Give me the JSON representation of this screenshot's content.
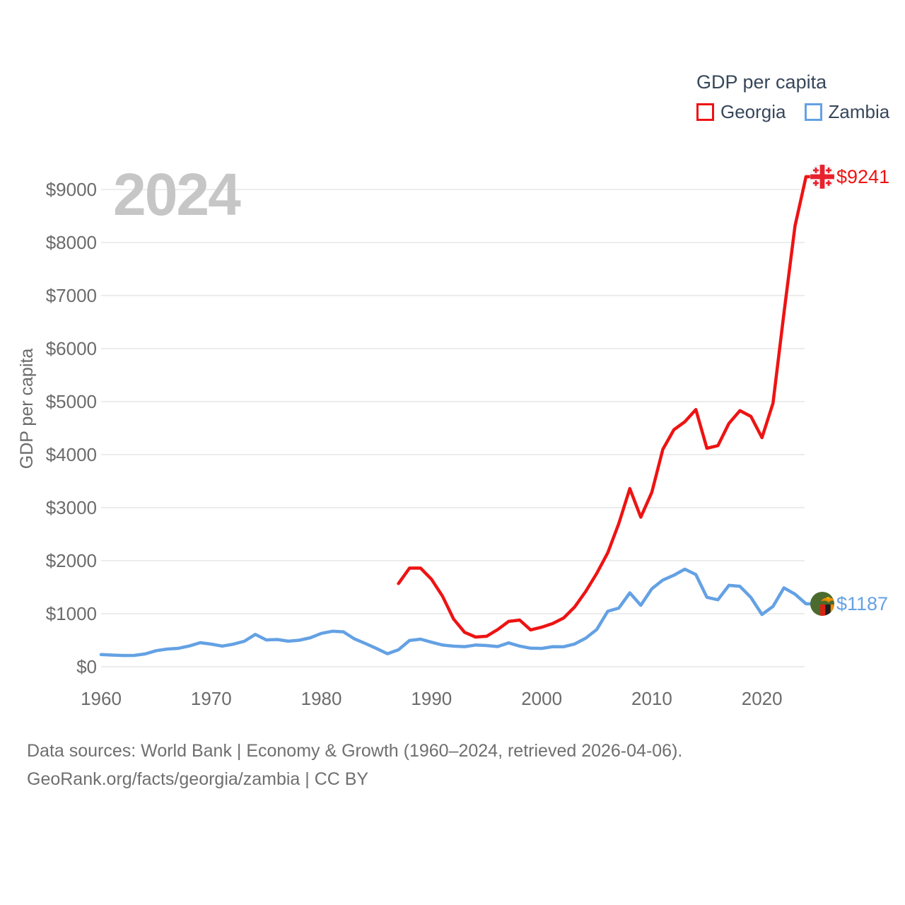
{
  "watermark_year": "2024",
  "legend": {
    "title": "GDP per capita",
    "items": [
      {
        "label": "Georgia",
        "color": "#ee1313"
      },
      {
        "label": "Zambia",
        "color": "#64a1e4"
      }
    ]
  },
  "end_labels": [
    {
      "series": "Georgia",
      "text": "$9241",
      "color": "#ee1313",
      "flag": "georgia-flag"
    },
    {
      "series": "Zambia",
      "text": "$1187",
      "color": "#64a1e4",
      "flag": "zambia-flag"
    }
  ],
  "footer": {
    "line1": "Data sources: World Bank | Economy & Growth (1960–2024, retrieved 2026-04-06).",
    "line2": "GeoRank.org/facts/georgia/zambia | CC BY"
  },
  "chart_data": {
    "type": "line",
    "title": "GDP per capita",
    "xlabel": "",
    "ylabel": "GDP per capita",
    "xlim": [
      1960,
      2024
    ],
    "ylim": [
      0,
      9500
    ],
    "grid": true,
    "legend_position": "top-right",
    "ytick_prefix": "$",
    "xticks": [
      1960,
      1970,
      1980,
      1990,
      2000,
      2010,
      2020
    ],
    "yticks": [
      0,
      1000,
      2000,
      3000,
      4000,
      5000,
      6000,
      7000,
      8000,
      9000
    ],
    "x": [
      1960,
      1961,
      1962,
      1963,
      1964,
      1965,
      1966,
      1967,
      1968,
      1969,
      1970,
      1971,
      1972,
      1973,
      1974,
      1975,
      1976,
      1977,
      1978,
      1979,
      1980,
      1981,
      1982,
      1983,
      1984,
      1985,
      1986,
      1987,
      1988,
      1989,
      1990,
      1991,
      1992,
      1993,
      1994,
      1995,
      1996,
      1997,
      1998,
      1999,
      2000,
      2001,
      2002,
      2003,
      2004,
      2005,
      2006,
      2007,
      2008,
      2009,
      2010,
      2011,
      2012,
      2013,
      2014,
      2015,
      2016,
      2017,
      2018,
      2019,
      2020,
      2021,
      2022,
      2023,
      2024
    ],
    "series": [
      {
        "name": "Georgia",
        "color": "#ee1313",
        "end_value": 9241,
        "values": [
          null,
          null,
          null,
          null,
          null,
          null,
          null,
          null,
          null,
          null,
          null,
          null,
          null,
          null,
          null,
          null,
          null,
          null,
          null,
          null,
          null,
          null,
          null,
          null,
          null,
          null,
          null,
          1570,
          1860,
          1860,
          1650,
          1330,
          900,
          650,
          560,
          575,
          700,
          855,
          880,
          695,
          745,
          815,
          920,
          1130,
          1420,
          1760,
          2150,
          2700,
          3360,
          2820,
          3290,
          4100,
          4470,
          4620,
          4850,
          4120,
          4170,
          4590,
          4830,
          4720,
          4320,
          4970,
          6670,
          8310,
          9241
        ]
      },
      {
        "name": "Zambia",
        "color": "#64a1e4",
        "end_value": 1187,
        "values": [
          230,
          220,
          212,
          213,
          242,
          303,
          333,
          347,
          391,
          454,
          427,
          389,
          425,
          480,
          610,
          505,
          513,
          481,
          500,
          546,
          630,
          669,
          658,
          525,
          437,
          344,
          245,
          320,
          495,
          520,
          463,
          410,
          388,
          378,
          410,
          400,
          380,
          450,
          390,
          350,
          345,
          378,
          377,
          430,
          538,
          702,
          1047,
          1105,
          1394,
          1159,
          1469,
          1635,
          1725,
          1840,
          1738,
          1310,
          1263,
          1535,
          1516,
          1305,
          985,
          1137,
          1488,
          1369,
          1187
        ]
      }
    ]
  }
}
